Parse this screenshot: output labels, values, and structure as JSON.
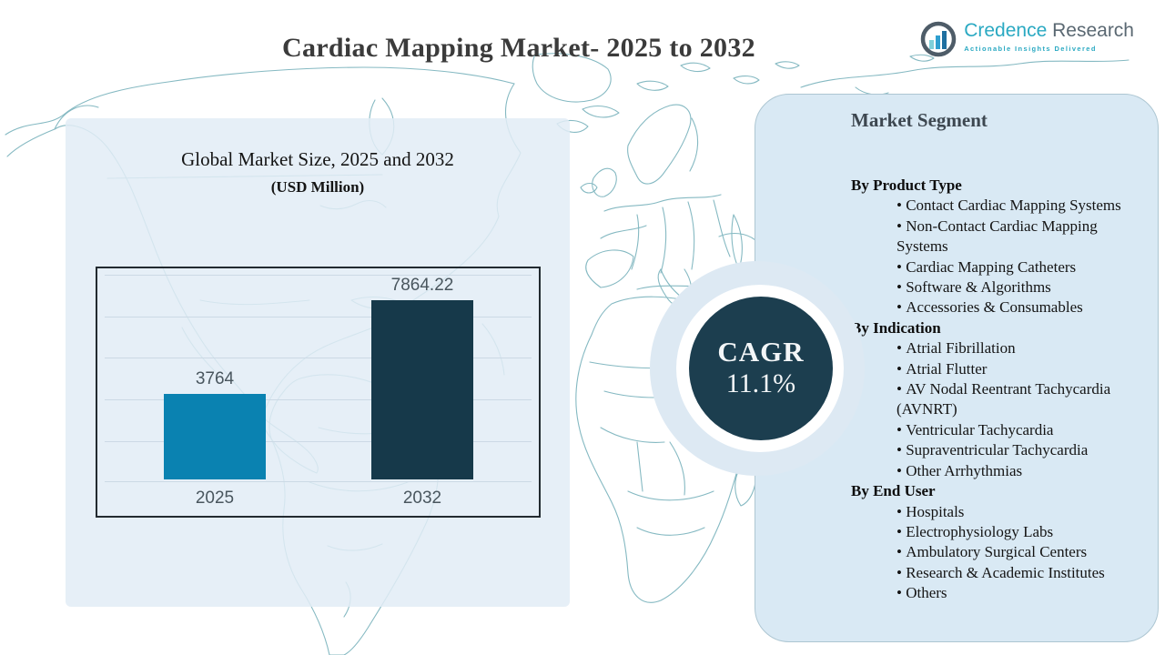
{
  "header": {
    "title": "Cardiac Mapping Market- 2025 to 2032"
  },
  "logo": {
    "brand_primary": "Credence",
    "brand_secondary": " Research",
    "tagline": "Actionable Insights Delivered",
    "icon": "bar-chart-in-circle-icon",
    "accent_color": "#2aa9c2",
    "text_color": "#5a6872"
  },
  "chart": {
    "title": "Global Market Size, 2025 and 2032",
    "subtitle": "(USD Million)"
  },
  "chart_data": {
    "type": "bar",
    "categories": [
      "2025",
      "2032"
    ],
    "values": [
      3764,
      7864.22
    ],
    "title": "Global Market Size, 2025 and 2032",
    "subtitle": "(USD Million)",
    "xlabel": "",
    "ylabel": "USD Million",
    "ylim": [
      0,
      10000
    ],
    "grid": true,
    "legend": "none",
    "bar_colors": [
      "#0a82b1",
      "#16394a"
    ],
    "value_labels": [
      "3764",
      "7864.22"
    ]
  },
  "cagr": {
    "label": "CAGR",
    "value": "11.1%",
    "circle_color": "#1c3e4f"
  },
  "segments": {
    "title": "Market Segment",
    "sections": [
      {
        "heading": "By Product Type",
        "items": [
          "Contact Cardiac Mapping Systems",
          "Non-Contact Cardiac Mapping Systems",
          "Cardiac Mapping Catheters",
          "Software & Algorithms",
          "Accessories & Consumables"
        ]
      },
      {
        "heading": "By Indication",
        "items": [
          "Atrial Fibrillation",
          "Atrial Flutter",
          "AV Nodal Reentrant Tachycardia (AVNRT)",
          "Ventricular Tachycardia",
          "Supraventricular Tachycardia",
          "Other Arrhythmias"
        ]
      },
      {
        "heading": "By End User",
        "items": [
          "Hospitals",
          "Electrophysiology Labs",
          "Ambulatory Surgical Centers",
          "Research & Academic Institutes",
          "Others"
        ]
      }
    ]
  },
  "colors": {
    "left_panel": "#e8eef7",
    "right_panel": "#d9e9f4",
    "map_stroke": "#85b9c2",
    "bar_2025": "#0a82b1",
    "bar_2032": "#16394a",
    "cagr_circle": "#1c3e4f"
  }
}
